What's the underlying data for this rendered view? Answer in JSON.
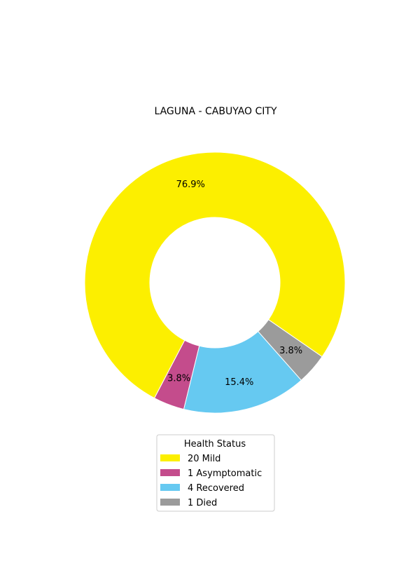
{
  "chart_data": {
    "type": "pie",
    "title": "LAGUNA - CABUYAO CITY",
    "donut": true,
    "legend": {
      "title": "Health Status",
      "placement": "bottom-center"
    },
    "slices": [
      {
        "label": "Mild",
        "value": 20,
        "legend_label": "20  Mild",
        "pct_label": "76.9%",
        "color": "#fcef00"
      },
      {
        "label": "Asymptomatic",
        "value": 1,
        "legend_label": "1  Asymptomatic",
        "pct_label": "3.8%",
        "color": "#c44c8c"
      },
      {
        "label": "Recovered",
        "value": 4,
        "legend_label": "4  Recovered",
        "pct_label": "15.4%",
        "color": "#66c9f1"
      },
      {
        "label": "Died",
        "value": 1,
        "legend_label": "1  Died",
        "pct_label": "3.8%",
        "color": "#9b9b9b"
      }
    ]
  }
}
